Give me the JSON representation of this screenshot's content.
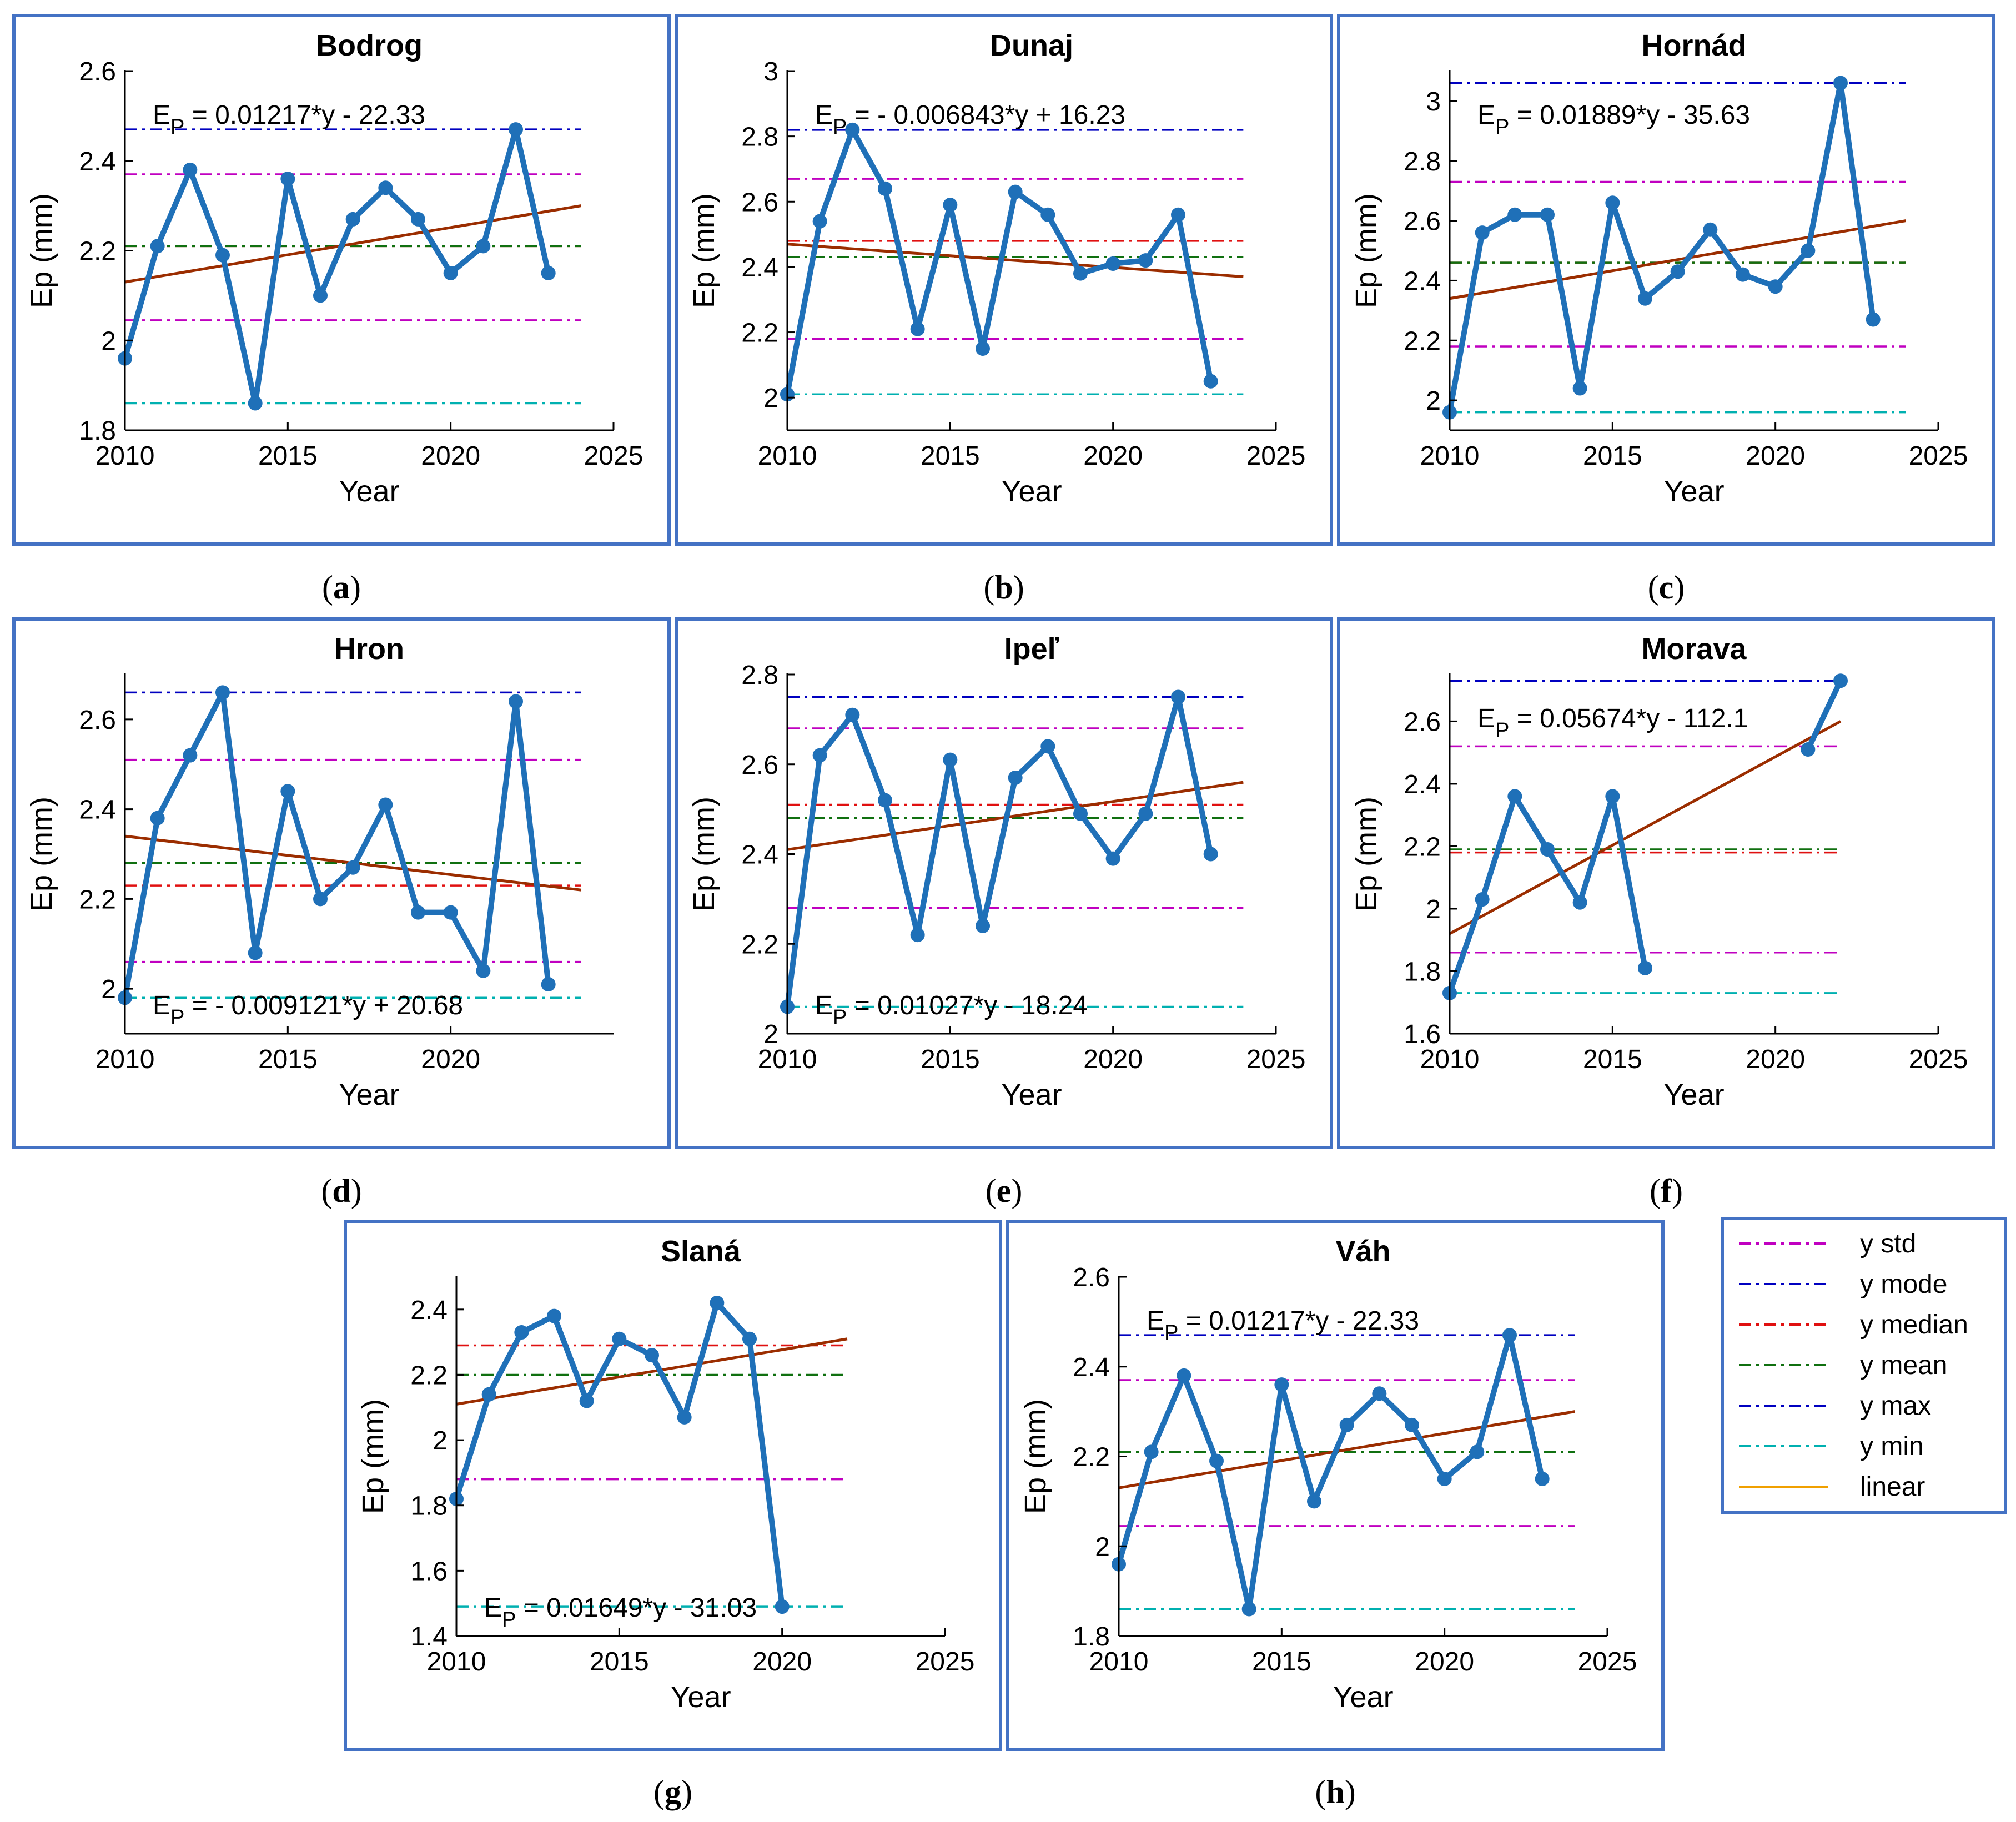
{
  "panel_labels": [
    "a",
    "b",
    "c",
    "d",
    "e",
    "f",
    "g",
    "h"
  ],
  "legend": [
    {
      "label": "y std",
      "color": "#c000c0",
      "style": "dash-dot"
    },
    {
      "label": "y mode",
      "color": "#0000c0",
      "style": "dash-dot"
    },
    {
      "label": "y median",
      "color": "#e01010",
      "style": "dash-dot"
    },
    {
      "label": "y mean",
      "color": "#107010",
      "style": "dash-dot"
    },
    {
      "label": "y max",
      "color": "#0000c0",
      "style": "dash-dot"
    },
    {
      "label": "y min",
      "color": "#00b0b0",
      "style": "dash-dot"
    },
    {
      "label": "linear",
      "color": "#f0a000",
      "style": "solid"
    }
  ],
  "chart_data": [
    {
      "type": "line",
      "title": "Bodrog",
      "label": "a",
      "xlabel": "Year",
      "ylabel": "Ep (mm)",
      "xlim": [
        2010,
        2025
      ],
      "ylim": [
        1.8,
        2.6
      ],
      "xticks": [
        2010,
        2015,
        2020,
        2025
      ],
      "yticks": [
        1.8,
        2,
        2.2,
        2.4,
        2.6
      ],
      "yticklabels": [
        "1.8",
        "2",
        "2.2",
        "2.4",
        "2.6"
      ],
      "equation": {
        "lhs": "E",
        "sub": "P",
        "rhs": " = 0.01217*y - 22.33",
        "pos": "top-left"
      },
      "series": [
        {
          "x": [
            2010,
            2011,
            2012,
            2013,
            2014,
            2015,
            2016,
            2017,
            2018,
            2019,
            2020,
            2021,
            2022,
            2023
          ],
          "values": [
            1.96,
            2.21,
            2.38,
            2.19,
            1.86,
            2.36,
            2.1,
            2.27,
            2.34,
            2.27,
            2.15,
            2.21,
            2.47,
            2.15
          ]
        }
      ],
      "lines": {
        "max": 2.47,
        "std_upper": 2.37,
        "mean": 2.21,
        "median": 2.21,
        "std_lower": 2.045,
        "min": 1.86
      },
      "trend": {
        "x": [
          2010,
          2024
        ],
        "y": [
          2.13,
          2.3
        ]
      }
    },
    {
      "type": "line",
      "title": "Dunaj",
      "label": "b",
      "xlabel": "Year",
      "ylabel": "Ep (mm)",
      "xlim": [
        2010,
        2025
      ],
      "ylim": [
        1.9,
        3.0
      ],
      "xticks": [
        2010,
        2015,
        2020,
        2025
      ],
      "yticks": [
        2,
        2.2,
        2.4,
        2.6,
        2.8,
        3
      ],
      "yticklabels": [
        "2",
        "2.2",
        "2.4",
        "2.6",
        "2.8",
        "3"
      ],
      "equation": {
        "lhs": "E",
        "sub": "P",
        "rhs": " = - 0.006843*y + 16.23",
        "pos": "top-left"
      },
      "series": [
        {
          "x": [
            2010,
            2011,
            2012,
            2013,
            2014,
            2015,
            2016,
            2017,
            2018,
            2019,
            2020,
            2021,
            2022,
            2023
          ],
          "values": [
            2.01,
            2.54,
            2.82,
            2.64,
            2.21,
            2.59,
            2.15,
            2.63,
            2.56,
            2.38,
            2.41,
            2.42,
            2.56,
            2.05
          ]
        }
      ],
      "lines": {
        "max": 2.82,
        "std_upper": 2.67,
        "mean": 2.43,
        "median": 2.48,
        "std_lower": 2.18,
        "min": 2.01
      },
      "trend": {
        "x": [
          2010,
          2024
        ],
        "y": [
          2.47,
          2.37
        ]
      }
    },
    {
      "type": "line",
      "title": "Hornád",
      "label": "c",
      "xlabel": "Year",
      "ylabel": "Ep (mm)",
      "xlim": [
        2010,
        2025
      ],
      "ylim": [
        1.9,
        3.1
      ],
      "xticks": [
        2010,
        2015,
        2020,
        2025
      ],
      "yticks": [
        2,
        2.2,
        2.4,
        2.6,
        2.8,
        3
      ],
      "yticklabels": [
        "2",
        "2.2",
        "2.4",
        "2.6",
        "2.8",
        "3"
      ],
      "equation": {
        "lhs": "E",
        "sub": "P",
        "rhs": " = 0.01889*y - 35.63",
        "pos": "top-left"
      },
      "series": [
        {
          "x": [
            2010,
            2011,
            2012,
            2013,
            2014,
            2015,
            2016,
            2017,
            2018,
            2019,
            2020,
            2021,
            2022,
            2023
          ],
          "values": [
            1.96,
            2.56,
            2.62,
            2.62,
            2.04,
            2.66,
            2.34,
            2.43,
            2.57,
            2.42,
            2.38,
            2.5,
            3.06,
            2.27
          ]
        }
      ],
      "lines": {
        "max": 3.06,
        "std_upper": 2.73,
        "mean": 2.46,
        "median": 2.46,
        "std_lower": 2.18,
        "min": 1.96
      },
      "trend": {
        "x": [
          2010,
          2024
        ],
        "y": [
          2.34,
          2.6
        ]
      }
    },
    {
      "type": "line",
      "title": "Hron",
      "label": "d",
      "xlabel": "Year",
      "ylabel": "Ep (mm)",
      "xlim": [
        2010,
        2025
      ],
      "ylim": [
        1.9,
        2.7
      ],
      "xticks": [
        2010,
        2015,
        2020
      ],
      "yticks": [
        2,
        2.2,
        2.4,
        2.6
      ],
      "yticklabels": [
        "2",
        "2.2",
        "2.4",
        "2.6"
      ],
      "equation": {
        "lhs": "E",
        "sub": "P",
        "rhs": " = - 0.009121*y + 20.68",
        "pos": "bottom-left"
      },
      "series": [
        {
          "x": [
            2010,
            2011,
            2012,
            2013,
            2014,
            2015,
            2016,
            2017,
            2018,
            2019,
            2020,
            2021,
            2022,
            2023
          ],
          "values": [
            1.98,
            2.38,
            2.52,
            2.66,
            2.08,
            2.44,
            2.2,
            2.27,
            2.41,
            2.17,
            2.17,
            2.04,
            2.64,
            2.01
          ]
        }
      ],
      "lines": {
        "max": 2.66,
        "std_upper": 2.51,
        "mean": 2.28,
        "median": 2.23,
        "std_lower": 2.06,
        "min": 1.98
      },
      "trend": {
        "x": [
          2010,
          2024
        ],
        "y": [
          2.34,
          2.22
        ]
      }
    },
    {
      "type": "line",
      "title": "Ipeľ",
      "label": "e",
      "xlabel": "Year",
      "ylabel": "Ep (mm)",
      "xlim": [
        2010,
        2025
      ],
      "ylim": [
        2.0,
        2.8
      ],
      "xticks": [
        2010,
        2015,
        2020,
        2025
      ],
      "yticks": [
        2,
        2.2,
        2.4,
        2.6,
        2.8
      ],
      "yticklabels": [
        "2",
        "2.2",
        "2.4",
        "2.6",
        "2.8"
      ],
      "equation": {
        "lhs": "E",
        "sub": "P",
        "rhs": " = 0.01027*y - 18.24",
        "pos": "bottom-left"
      },
      "series": [
        {
          "x": [
            2010,
            2011,
            2012,
            2013,
            2014,
            2015,
            2016,
            2017,
            2018,
            2019,
            2020,
            2021,
            2022,
            2023
          ],
          "values": [
            2.06,
            2.62,
            2.71,
            2.52,
            2.22,
            2.61,
            2.24,
            2.57,
            2.64,
            2.49,
            2.39,
            2.49,
            2.75,
            2.4
          ]
        }
      ],
      "lines": {
        "max": 2.75,
        "std_upper": 2.68,
        "mean": 2.48,
        "median": 2.51,
        "std_lower": 2.28,
        "min": 2.06
      },
      "trend": {
        "x": [
          2010,
          2024
        ],
        "y": [
          2.41,
          2.56
        ]
      }
    },
    {
      "type": "line",
      "title": "Morava",
      "label": "f",
      "xlabel": "Year",
      "ylabel": "Ep (mm)",
      "xlim": [
        2010,
        2025
      ],
      "ylim": [
        1.6,
        2.75
      ],
      "xticks": [
        2010,
        2015,
        2020,
        2025
      ],
      "yticks": [
        1.6,
        1.8,
        2,
        2.2,
        2.4,
        2.6
      ],
      "yticklabels": [
        "1.6",
        "1.8",
        "2",
        "2.2",
        "2.4",
        "2.6"
      ],
      "equation": {
        "lhs": "E",
        "sub": "P",
        "rhs": " = 0.05674*y - 112.1",
        "pos": "top-left"
      },
      "series": [
        {
          "x": [
            2010,
            2011,
            2012,
            2013,
            2014,
            2015,
            2016
          ],
          "values": [
            1.73,
            2.03,
            2.36,
            2.19,
            2.02,
            2.36,
            1.81
          ]
        },
        {
          "x": [
            2021,
            2022
          ],
          "values": [
            2.51,
            2.73
          ]
        }
      ],
      "lines": {
        "max": 2.73,
        "std_upper": 2.52,
        "mean": 2.19,
        "median": 2.18,
        "std_lower": 1.86,
        "min": 1.73
      },
      "trend": {
        "x": [
          2010,
          2022
        ],
        "y": [
          1.92,
          2.6
        ]
      }
    },
    {
      "type": "line",
      "title": "Slaná",
      "label": "g",
      "xlabel": "Year",
      "ylabel": "Ep (mm)",
      "xlim": [
        2010,
        2025
      ],
      "ylim": [
        1.4,
        2.5
      ],
      "xticks": [
        2010,
        2015,
        2020,
        2025
      ],
      "yticks": [
        1.4,
        1.6,
        1.8,
        2,
        2.2,
        2.4
      ],
      "yticklabels": [
        "1.4",
        "1.6",
        "1.8",
        "2",
        "2.2",
        "2.4"
      ],
      "equation": {
        "lhs": "E",
        "sub": "P",
        "rhs": " = 0.01649*y - 31.03",
        "pos": "bottom-left"
      },
      "series": [
        {
          "x": [
            2010,
            2011,
            2012,
            2013,
            2014,
            2015,
            2016,
            2017,
            2018,
            2019,
            2020
          ],
          "values": [
            1.82,
            2.14,
            2.33,
            2.38,
            2.12,
            2.31,
            2.26,
            2.07,
            2.42,
            2.31,
            1.49
          ]
        }
      ],
      "lines": {
        "mean": 2.2,
        "median": 2.29,
        "std_lower": 1.88,
        "min": 1.49
      },
      "trend": {
        "x": [
          2010,
          2022
        ],
        "y": [
          2.11,
          2.31
        ]
      }
    },
    {
      "type": "line",
      "title": "Váh",
      "label": "h",
      "xlabel": "Year",
      "ylabel": "Ep (mm)",
      "xlim": [
        2010,
        2025
      ],
      "ylim": [
        1.8,
        2.6
      ],
      "xticks": [
        2010,
        2015,
        2020,
        2025
      ],
      "yticks": [
        1.8,
        2,
        2.2,
        2.4,
        2.6
      ],
      "yticklabels": [
        "1.8",
        "2",
        "2.2",
        "2.4",
        "2.6"
      ],
      "equation": {
        "lhs": "E",
        "sub": "P",
        "rhs": " = 0.01217*y - 22.33",
        "pos": "top-left"
      },
      "series": [
        {
          "x": [
            2010,
            2011,
            2012,
            2013,
            2014,
            2015,
            2016,
            2017,
            2018,
            2019,
            2020,
            2021,
            2022,
            2023
          ],
          "values": [
            1.96,
            2.21,
            2.38,
            2.19,
            1.86,
            2.36,
            2.1,
            2.27,
            2.34,
            2.27,
            2.15,
            2.21,
            2.47,
            2.15
          ]
        }
      ],
      "lines": {
        "max": 2.47,
        "std_upper": 2.37,
        "mean": 2.21,
        "median": 2.21,
        "std_lower": 2.045,
        "min": 1.86
      },
      "trend": {
        "x": [
          2010,
          2024
        ],
        "y": [
          2.13,
          2.3
        ]
      }
    }
  ]
}
